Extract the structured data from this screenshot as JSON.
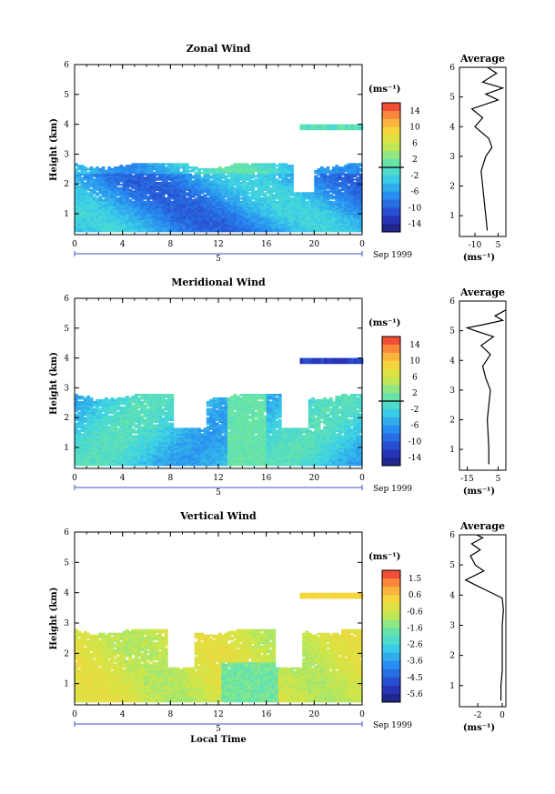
{
  "figure": {
    "x_axis_label": "Local Time",
    "date_label": "Sep 1999",
    "date_marker": "5",
    "y_axis_label": "Height (km)",
    "unit_label": "(ms⁻¹)",
    "profile_title": "Average",
    "profile_xlabel": "(ms⁻¹)",
    "x_ticks": [
      "0",
      "4",
      "8",
      "12",
      "16",
      "20",
      "0"
    ],
    "y_ticks": [
      "1",
      "2",
      "3",
      "4",
      "5",
      "6"
    ]
  },
  "chart_data": [
    {
      "type": "heatmap",
      "title": "Zonal Wind",
      "xlabel": "Local Time",
      "ylabel": "Height (km)",
      "xlim": [
        0,
        24
      ],
      "ylim": [
        0.3,
        6
      ],
      "colorbar": {
        "ticks": [
          "14",
          "10",
          "6",
          "2",
          "-2",
          "-6",
          "-10",
          "-14"
        ],
        "range": [
          -16,
          16
        ],
        "zero_line": 0
      },
      "field": {
        "kind": "zonal",
        "top": 2.7,
        "mean": -6,
        "amp": 4
      },
      "profile": {
        "title": "Average",
        "xlim": [
          -20,
          10
        ],
        "x_ticks": [
          "-10",
          "5"
        ],
        "x_tick_values": [
          -10,
          5
        ],
        "points": [
          [
            -2,
            0.5
          ],
          [
            -3,
            1.0
          ],
          [
            -4,
            1.5
          ],
          [
            -5,
            2.0
          ],
          [
            -6,
            2.5
          ],
          [
            -3,
            3.0
          ],
          [
            1,
            3.3
          ],
          [
            -1,
            3.6
          ],
          [
            -10,
            4.0
          ],
          [
            -5,
            4.3
          ],
          [
            -12,
            4.6
          ],
          [
            5,
            4.9
          ],
          [
            -3,
            5.1
          ],
          [
            8,
            5.3
          ],
          [
            -5,
            5.5
          ],
          [
            4,
            5.8
          ],
          [
            -2,
            6.0
          ]
        ]
      }
    },
    {
      "type": "heatmap",
      "title": "Meridional Wind",
      "xlabel": "Local Time",
      "ylabel": "Height (km)",
      "xlim": [
        0,
        24
      ],
      "ylim": [
        0.3,
        6
      ],
      "colorbar": {
        "ticks": [
          "14",
          "10",
          "6",
          "2",
          "-2",
          "-6",
          "-10",
          "-14"
        ],
        "range": [
          -16,
          16
        ],
        "zero_line": 0
      },
      "field": {
        "kind": "meridional",
        "top": 2.8,
        "mean": -3,
        "amp": 3
      },
      "profile": {
        "title": "Average",
        "xlim": [
          -20,
          10
        ],
        "x_ticks": [
          "-15",
          "5"
        ],
        "x_tick_values": [
          -15,
          5
        ],
        "points": [
          [
            -1,
            0.5
          ],
          [
            -1,
            1.0
          ],
          [
            -1.5,
            1.5
          ],
          [
            -2,
            2.0
          ],
          [
            -1,
            2.5
          ],
          [
            0,
            3.0
          ],
          [
            -3,
            3.4
          ],
          [
            -5,
            3.8
          ],
          [
            0,
            4.2
          ],
          [
            -6,
            4.5
          ],
          [
            2,
            4.8
          ],
          [
            -10,
            5.0
          ],
          [
            -15,
            5.1
          ],
          [
            -5,
            5.2
          ],
          [
            8,
            5.35
          ],
          [
            3,
            5.5
          ],
          [
            10,
            5.7
          ]
        ]
      }
    },
    {
      "type": "heatmap",
      "title": "Vertical Wind",
      "xlabel": "Local Time",
      "ylabel": "Height (km)",
      "xlim": [
        0,
        24
      ],
      "ylim": [
        0.3,
        6
      ],
      "colorbar": {
        "ticks": [
          "1.5",
          "0.6",
          "-0.6",
          "-1.6",
          "-2.6",
          "-3.6",
          "-4.5",
          "-5.6"
        ],
        "range": [
          -6,
          2
        ],
        "zero_line": null
      },
      "field": {
        "kind": "vertical",
        "top": 2.8,
        "mean": -0.5,
        "amp": 0.4
      },
      "profile": {
        "title": "Average",
        "xlim": [
          -3.5,
          0.3
        ],
        "x_ticks": [
          "-2",
          "0"
        ],
        "x_tick_values": [
          -2,
          0
        ],
        "points": [
          [
            -0.1,
            0.5
          ],
          [
            -0.1,
            1.0
          ],
          [
            0,
            1.5
          ],
          [
            0,
            2.0
          ],
          [
            0,
            2.5
          ],
          [
            0,
            3.0
          ],
          [
            0.1,
            3.5
          ],
          [
            0,
            3.9
          ],
          [
            -1,
            4.1
          ],
          [
            -2,
            4.3
          ],
          [
            -3,
            4.5
          ],
          [
            -1.5,
            4.8
          ],
          [
            -2.2,
            5.0
          ],
          [
            -2.6,
            5.3
          ],
          [
            -1.8,
            5.5
          ],
          [
            -2.5,
            5.7
          ],
          [
            -1.6,
            5.9
          ],
          [
            -2.1,
            6.0
          ]
        ]
      }
    }
  ]
}
